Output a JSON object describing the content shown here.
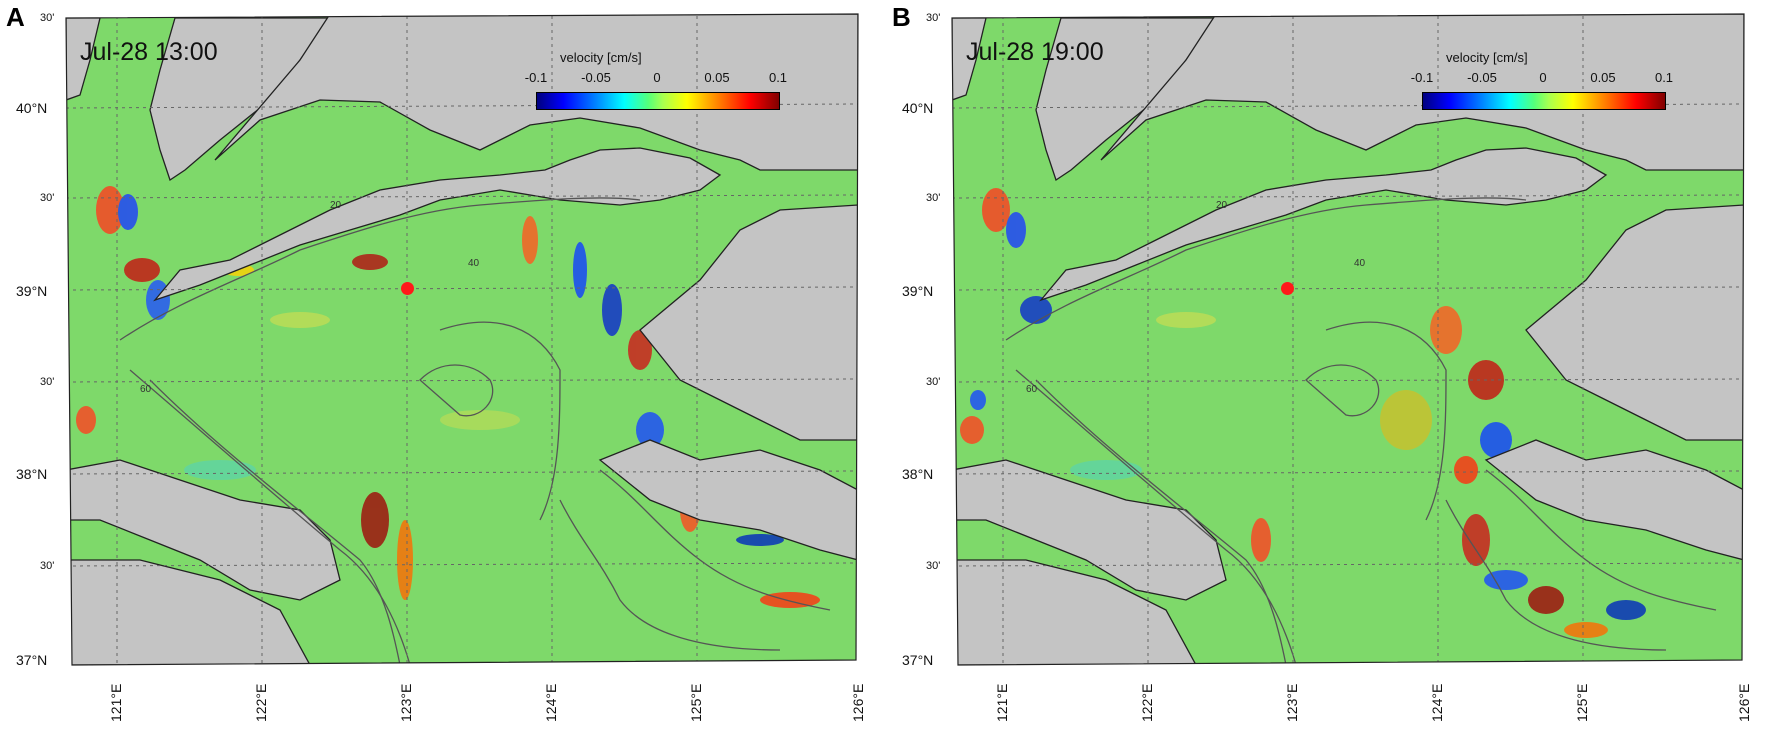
{
  "colors": {
    "sea": "#7ed96a",
    "land": "#c4c4c4",
    "contour": "#555555",
    "coast": "#222222",
    "grid": "#666666",
    "marker": "#ff1a1a"
  },
  "colorbar": {
    "title": "velocity [cm/s]",
    "ticks": [
      "-0.1",
      "-0.05",
      "0",
      "0.05",
      "0.1"
    ],
    "range": [
      -0.1,
      0.1
    ],
    "colormap": "jet"
  },
  "lat_labels": [
    "30'",
    "40°N",
    "30'",
    "39°N",
    "30'",
    "38°N",
    "30'",
    "37°N"
  ],
  "lon_labels": [
    "121°E",
    "122°E",
    "123°E",
    "124°E",
    "125°E",
    "126°E"
  ],
  "contour_labels": [
    "20",
    "40",
    "60"
  ],
  "panels": [
    {
      "letter": "A",
      "time_label": "Jul-28 13:00"
    },
    {
      "letter": "B",
      "time_label": "Jul-28 19:00"
    }
  ]
}
